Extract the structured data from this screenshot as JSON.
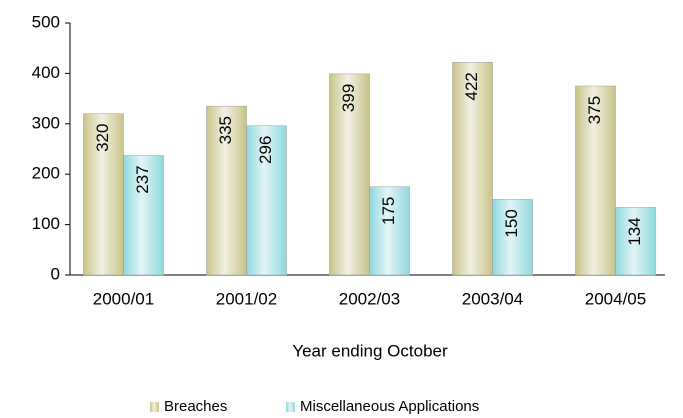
{
  "chart_data": {
    "type": "bar",
    "categories": [
      "2000/01",
      "2001/02",
      "2002/03",
      "2003/04",
      "2004/05"
    ],
    "series": [
      {
        "name": "Breaches",
        "color": "#c9c48a",
        "values": [
          320,
          335,
          399,
          422,
          375
        ]
      },
      {
        "name": "Miscellaneous Applications",
        "color": "#8fd8dd",
        "values": [
          237,
          296,
          175,
          150,
          134
        ]
      }
    ],
    "x_label": "Year ending October",
    "ylim": [
      0,
      500
    ],
    "yticks": [
      0,
      100,
      200,
      300,
      400,
      500
    ],
    "legend": "bottom"
  }
}
